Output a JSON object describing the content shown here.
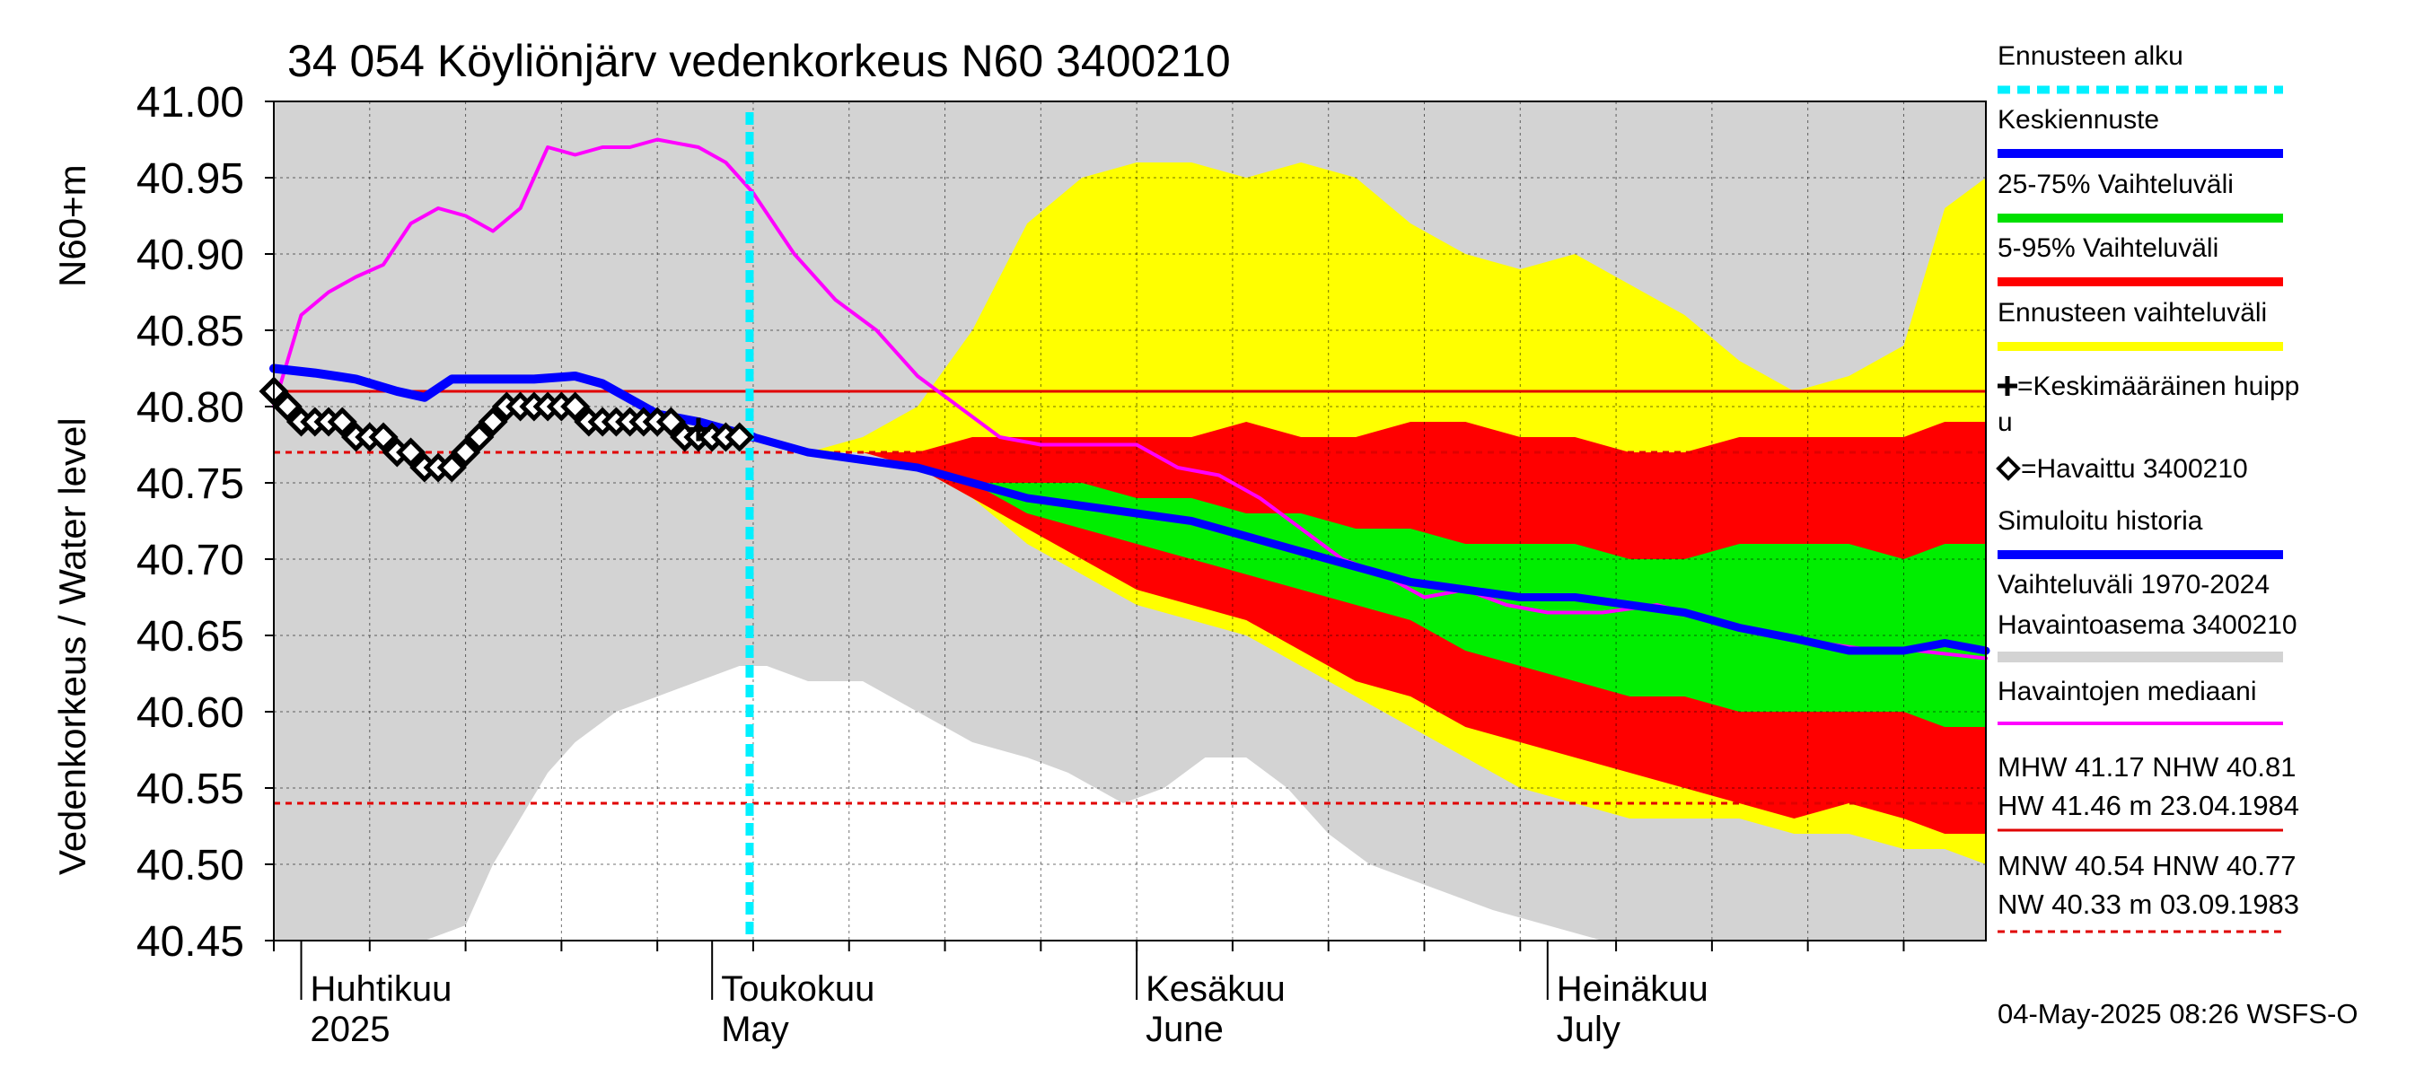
{
  "chart_data": {
    "type": "area",
    "title": "34 054 Köyliönjärv vedenkorkeus N60 3400210",
    "ylabel_line1": "Vedenkorkeus / Water level",
    "ylabel_line2": "N60+m",
    "ylim": [
      40.45,
      41.0
    ],
    "y_ticks": [
      "41.00",
      "40.95",
      "40.90",
      "40.85",
      "40.80",
      "40.75",
      "40.70",
      "40.65",
      "40.60",
      "40.55",
      "40.50",
      "40.45"
    ],
    "x_start": "2025-03-30",
    "x_end": "2025-08-02",
    "forecast_start": "2025-05-04",
    "months": [
      {
        "date": "2025-04-01",
        "fi": "Huhtikuu",
        "en": "2025"
      },
      {
        "date": "2025-05-01",
        "fi": "Toukokuu",
        "en": "May"
      },
      {
        "date": "2025-06-01",
        "fi": "Kesäkuu",
        "en": "June"
      },
      {
        "date": "2025-07-01",
        "fi": "Heinäkuu",
        "en": "July"
      }
    ],
    "reference_lines": {
      "nhw": 40.81,
      "hnw": 40.77,
      "mnw": 40.54
    },
    "historical_range": {
      "dates": [
        "2025-03-30",
        "2025-04-05",
        "2025-04-10",
        "2025-04-13",
        "2025-04-15",
        "2025-04-17",
        "2025-04-19",
        "2025-04-21",
        "2025-04-24",
        "2025-04-27",
        "2025-04-30",
        "2025-05-03",
        "2025-05-05",
        "2025-05-08",
        "2025-05-12",
        "2025-05-16",
        "2025-05-20",
        "2025-05-24",
        "2025-05-27",
        "2025-05-31",
        "2025-06-03",
        "2025-06-06",
        "2025-06-09",
        "2025-06-12",
        "2025-06-15",
        "2025-06-18",
        "2025-06-21",
        "2025-06-24",
        "2025-06-27",
        "2025-07-01",
        "2025-07-05",
        "2025-07-10",
        "2025-07-15",
        "2025-07-20",
        "2025-07-25",
        "2025-07-30",
        "2025-08-02"
      ],
      "high": [
        41.0,
        41.0,
        41.0,
        41.0,
        41.0,
        41.0,
        41.0,
        41.0,
        41.0,
        41.0,
        41.0,
        41.0,
        41.0,
        41.0,
        41.0,
        41.0,
        41.0,
        41.0,
        41.0,
        41.0,
        41.0,
        41.0,
        41.0,
        41.0,
        41.0,
        41.0,
        41.0,
        41.0,
        41.0,
        41.0,
        41.0,
        41.0,
        41.0,
        41.0,
        41.0,
        41.0,
        41.0
      ],
      "low": [
        40.45,
        40.45,
        40.45,
        40.46,
        40.5,
        40.53,
        40.56,
        40.58,
        40.6,
        40.61,
        40.62,
        40.63,
        40.63,
        40.62,
        40.62,
        40.6,
        40.58,
        40.57,
        40.56,
        40.54,
        40.55,
        40.57,
        40.57,
        40.55,
        40.52,
        40.5,
        40.49,
        40.48,
        40.47,
        40.46,
        40.45,
        40.45,
        40.45,
        40.45,
        40.45,
        40.45,
        40.45
      ]
    },
    "forecast_bands": {
      "dates": [
        "2025-05-04",
        "2025-05-08",
        "2025-05-12",
        "2025-05-16",
        "2025-05-20",
        "2025-05-24",
        "2025-05-28",
        "2025-06-01",
        "2025-06-05",
        "2025-06-09",
        "2025-06-13",
        "2025-06-17",
        "2025-06-21",
        "2025-06-25",
        "2025-06-29",
        "2025-07-03",
        "2025-07-07",
        "2025-07-11",
        "2025-07-15",
        "2025-07-19",
        "2025-07-23",
        "2025-07-27",
        "2025-07-30",
        "2025-08-02"
      ],
      "p0": [
        40.78,
        40.77,
        40.77,
        40.76,
        40.74,
        40.71,
        40.69,
        40.67,
        40.66,
        40.65,
        40.63,
        40.61,
        40.59,
        40.57,
        40.55,
        40.54,
        40.53,
        40.53,
        40.53,
        40.52,
        40.52,
        40.51,
        40.51,
        40.5
      ],
      "p5": [
        40.78,
        40.77,
        40.77,
        40.76,
        40.74,
        40.72,
        40.7,
        40.68,
        40.67,
        40.66,
        40.64,
        40.62,
        40.61,
        40.59,
        40.58,
        40.57,
        40.56,
        40.55,
        40.54,
        40.53,
        40.54,
        40.53,
        40.52,
        40.52
      ],
      "p25": [
        40.78,
        40.77,
        40.77,
        40.76,
        40.75,
        40.73,
        40.72,
        40.71,
        40.7,
        40.69,
        40.68,
        40.67,
        40.66,
        40.64,
        40.63,
        40.62,
        40.61,
        40.61,
        40.6,
        40.6,
        40.6,
        40.6,
        40.59,
        40.59
      ],
      "p75": [
        40.78,
        40.77,
        40.77,
        40.76,
        40.75,
        40.75,
        40.75,
        40.74,
        40.74,
        40.73,
        40.73,
        40.72,
        40.72,
        40.71,
        40.71,
        40.71,
        40.7,
        40.7,
        40.71,
        40.71,
        40.71,
        40.7,
        40.71,
        40.71
      ],
      "p95": [
        40.78,
        40.77,
        40.77,
        40.77,
        40.78,
        40.78,
        40.78,
        40.78,
        40.78,
        40.79,
        40.78,
        40.78,
        40.79,
        40.79,
        40.78,
        40.78,
        40.77,
        40.77,
        40.78,
        40.78,
        40.78,
        40.78,
        40.79,
        40.79
      ],
      "p100": [
        40.78,
        40.77,
        40.78,
        40.8,
        40.85,
        40.92,
        40.95,
        40.96,
        40.96,
        40.95,
        40.96,
        40.95,
        40.92,
        40.9,
        40.89,
        40.9,
        40.88,
        40.86,
        40.83,
        40.81,
        40.82,
        40.84,
        40.93,
        40.95
      ]
    },
    "series": [
      {
        "name": "Keskiennuste",
        "dates": [
          "2025-05-04",
          "2025-05-08",
          "2025-05-12",
          "2025-05-16",
          "2025-05-20",
          "2025-05-24",
          "2025-05-28",
          "2025-06-01",
          "2025-06-05",
          "2025-06-09",
          "2025-06-13",
          "2025-06-17",
          "2025-06-21",
          "2025-06-25",
          "2025-06-29",
          "2025-07-03",
          "2025-07-07",
          "2025-07-11",
          "2025-07-15",
          "2025-07-19",
          "2025-07-23",
          "2025-07-27",
          "2025-07-30",
          "2025-08-02"
        ],
        "values": [
          40.78,
          40.77,
          40.765,
          40.76,
          40.75,
          40.74,
          40.735,
          40.73,
          40.725,
          40.715,
          40.705,
          40.695,
          40.685,
          40.68,
          40.675,
          40.675,
          40.67,
          40.665,
          40.655,
          40.648,
          40.64,
          40.64,
          40.645,
          40.64
        ]
      },
      {
        "name": "Simuloitu historia",
        "dates": [
          "2025-03-30",
          "2025-04-02",
          "2025-04-05",
          "2025-04-08",
          "2025-04-10",
          "2025-04-12",
          "2025-04-15",
          "2025-04-18",
          "2025-04-21",
          "2025-04-23",
          "2025-04-25",
          "2025-04-27",
          "2025-04-30",
          "2025-05-02",
          "2025-05-04"
        ],
        "values": [
          40.825,
          40.822,
          40.818,
          40.81,
          40.806,
          40.818,
          40.818,
          40.818,
          40.82,
          40.815,
          40.805,
          40.795,
          40.79,
          40.785,
          40.78
        ]
      },
      {
        "name": "Havaintojen mediaani",
        "dates": [
          "2025-03-30",
          "2025-04-01",
          "2025-04-03",
          "2025-04-05",
          "2025-04-07",
          "2025-04-09",
          "2025-04-11",
          "2025-04-13",
          "2025-04-15",
          "2025-04-17",
          "2025-04-19",
          "2025-04-21",
          "2025-04-23",
          "2025-04-25",
          "2025-04-27",
          "2025-04-30",
          "2025-05-02",
          "2025-05-04",
          "2025-05-07",
          "2025-05-10",
          "2025-05-13",
          "2025-05-16",
          "2025-05-19",
          "2025-05-22",
          "2025-05-25",
          "2025-05-28",
          "2025-06-01",
          "2025-06-04",
          "2025-06-07",
          "2025-06-10",
          "2025-06-13",
          "2025-06-16",
          "2025-06-19",
          "2025-06-22",
          "2025-06-25",
          "2025-06-28",
          "2025-07-01",
          "2025-07-05",
          "2025-07-09",
          "2025-07-13",
          "2025-07-17",
          "2025-07-21",
          "2025-07-25",
          "2025-07-28",
          "2025-08-02"
        ],
        "values": [
          40.8,
          40.86,
          40.875,
          40.885,
          40.893,
          40.92,
          40.93,
          40.925,
          40.915,
          40.93,
          40.97,
          40.965,
          40.97,
          40.97,
          40.975,
          40.97,
          40.96,
          40.94,
          40.9,
          40.87,
          40.85,
          40.82,
          40.8,
          40.78,
          40.775,
          40.775,
          40.775,
          40.76,
          40.755,
          40.74,
          40.72,
          40.7,
          40.69,
          40.675,
          40.68,
          40.67,
          40.665,
          40.665,
          40.67,
          40.66,
          40.65,
          40.645,
          40.64,
          40.64,
          40.635
        ]
      }
    ],
    "observed": {
      "name": "Havaittu 3400210",
      "dates": [
        "2025-03-30",
        "2025-03-31",
        "2025-04-01",
        "2025-04-02",
        "2025-04-03",
        "2025-04-04",
        "2025-04-05",
        "2025-04-06",
        "2025-04-07",
        "2025-04-08",
        "2025-04-09",
        "2025-04-10",
        "2025-04-11",
        "2025-04-12",
        "2025-04-13",
        "2025-04-14",
        "2025-04-15",
        "2025-04-16",
        "2025-04-17",
        "2025-04-18",
        "2025-04-19",
        "2025-04-20",
        "2025-04-21",
        "2025-04-22",
        "2025-04-23",
        "2025-04-24",
        "2025-04-25",
        "2025-04-26",
        "2025-04-27",
        "2025-04-28",
        "2025-04-29",
        "2025-04-30",
        "2025-05-01",
        "2025-05-02",
        "2025-05-03"
      ],
      "values": [
        40.81,
        40.8,
        40.79,
        40.79,
        40.79,
        40.79,
        40.78,
        40.78,
        40.78,
        40.77,
        40.77,
        40.76,
        40.76,
        40.76,
        40.77,
        40.78,
        40.79,
        40.8,
        40.8,
        40.8,
        40.8,
        40.8,
        40.8,
        40.79,
        40.79,
        40.79,
        40.79,
        40.79,
        40.79,
        40.79,
        40.78,
        40.78,
        40.78,
        40.78,
        40.78
      ]
    },
    "mean_peak": {
      "date": "2025-04-30",
      "value": 40.785
    }
  },
  "legend": [
    {
      "label": "Ennusteen alku",
      "color": "#00f0ff",
      "style": "dotted"
    },
    {
      "label": "Keskiennuste",
      "color": "#0000ff",
      "style": "solid"
    },
    {
      "label": "25-75% Vaihteluväli",
      "color": "#00e000",
      "style": "solid"
    },
    {
      "label": "5-95% Vaihteluväli",
      "color": "#ff0000",
      "style": "solid"
    },
    {
      "label": "Ennusteen vaihteluväli",
      "color": "#ffff00",
      "style": "solid"
    },
    {
      "label": "=Keskimääräinen huipp",
      "label2": "u",
      "marker": "plus"
    },
    {
      "label": "=Havaittu 3400210",
      "marker": "diamond"
    },
    {
      "label": "Simuloitu historia",
      "color": "#0000ff",
      "style": "solid"
    },
    {
      "label": "Vaihteluväli 1970-2024",
      "label2": " Havaintoasema 3400210",
      "color": "#d3d3d3",
      "style": "solid"
    },
    {
      "label": "Havaintojen mediaani",
      "color": "#ff00ff",
      "style": "solid"
    }
  ],
  "stats": {
    "line1": "MHW  41.17 NHW  40.81",
    "line2": "HW  41.46 m 23.04.1984",
    "line3": "MNW  40.54 HNW  40.77",
    "line4": "NW  40.33 m 03.09.1983"
  },
  "footer": "04-May-2025 08:26 WSFS-O",
  "colors": {
    "historical": "#d3d3d3",
    "yellow": "#ffff00",
    "red": "#ff0000",
    "green": "#00ee00",
    "blue": "#0000ff",
    "magenta": "#ff00ff",
    "cyan": "#00f0ff",
    "refline": "#e00000"
  }
}
